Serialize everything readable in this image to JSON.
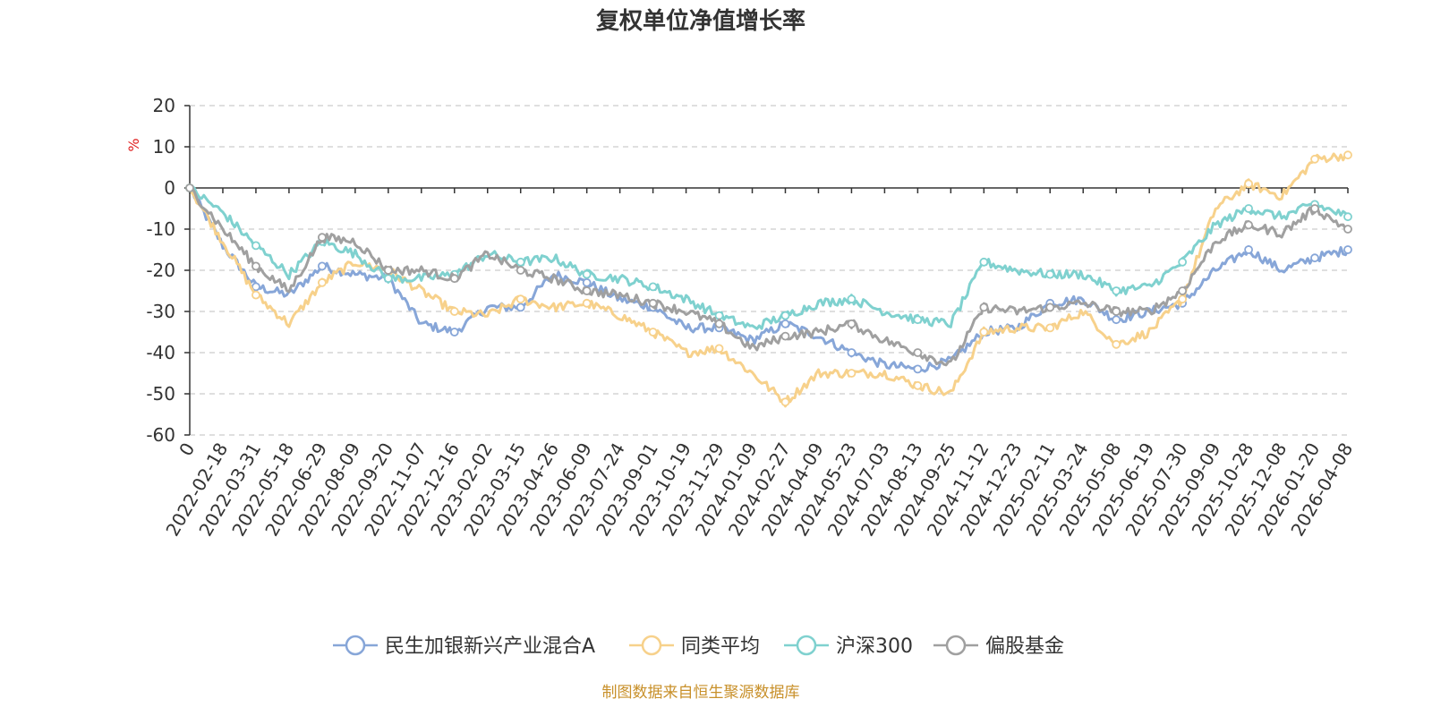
{
  "chart_data": {
    "type": "line",
    "title": "复权单位净值增长率",
    "ylabel": "%",
    "ylim": [
      -60,
      20
    ],
    "yticks": [
      20,
      10,
      0,
      -10,
      -20,
      -30,
      -40,
      -50,
      -60
    ],
    "categories": [
      "0",
      "2022-02-18",
      "2022-03-31",
      "2022-05-18",
      "2022-06-29",
      "2022-08-09",
      "2022-09-20",
      "2022-11-07",
      "2022-12-16",
      "2023-02-02",
      "2023-03-15",
      "2023-04-26",
      "2023-06-09",
      "2023-07-24",
      "2023-09-01",
      "2023-10-19",
      "2023-11-29",
      "2024-01-09",
      "2024-02-27",
      "2024-04-09",
      "2024-05-23",
      "2024-07-03",
      "2024-08-13",
      "2024-09-25",
      "2024-11-12",
      "2024-12-23",
      "2025-02-11",
      "2025-03-24",
      "2025-05-08",
      "2025-06-19",
      "2025-07-30",
      "2025-09-09",
      "2025-10-28",
      "2025-12-08",
      "2026-01-20",
      "2026-04-08"
    ],
    "series": [
      {
        "name": "民生加银新兴产业混合A",
        "color": "#87a6d8",
        "values": [
          0,
          -14,
          -24,
          -26,
          -19,
          -21,
          -22,
          -33,
          -35,
          -29,
          -29,
          -21,
          -23,
          -27,
          -29,
          -34,
          -34,
          -37,
          -33,
          -36,
          -40,
          -43,
          -44,
          -42,
          -35,
          -34,
          -28,
          -27,
          -32,
          -30,
          -28,
          -20,
          -15,
          -20,
          -17,
          -15
        ]
      },
      {
        "name": "同类平均",
        "color": "#f7d18b",
        "values": [
          0,
          -13,
          -26,
          -33,
          -23,
          -18,
          -20,
          -25,
          -30,
          -31,
          -27,
          -29,
          -28,
          -31,
          -35,
          -40,
          -39,
          -45,
          -52,
          -45,
          -45,
          -45,
          -48,
          -50,
          -35,
          -34,
          -34,
          -30,
          -38,
          -35,
          -27,
          -5,
          1,
          -2,
          7,
          8
        ]
      },
      {
        "name": "沪深300",
        "color": "#7fd1cf",
        "values": [
          0,
          -6,
          -14,
          -21,
          -13,
          -16,
          -22,
          -22,
          -21,
          -16,
          -18,
          -17,
          -21,
          -22,
          -24,
          -27,
          -31,
          -34,
          -31,
          -28,
          -27,
          -30,
          -32,
          -33,
          -18,
          -20,
          -21,
          -21,
          -25,
          -24,
          -18,
          -9,
          -5,
          -7,
          -4,
          -7
        ]
      },
      {
        "name": "偏股基金",
        "color": "#a0a0a0",
        "values": [
          0,
          -10,
          -19,
          -25,
          -12,
          -13,
          -20,
          -20,
          -22,
          -16,
          -20,
          -22,
          -25,
          -26,
          -28,
          -30,
          -33,
          -39,
          -36,
          -35,
          -33,
          -37,
          -40,
          -43,
          -29,
          -30,
          -29,
          -28,
          -30,
          -30,
          -25,
          -13,
          -9,
          -11,
          -5,
          -10
        ]
      }
    ]
  },
  "source_text": "制图数据来自恒生聚源数据库"
}
